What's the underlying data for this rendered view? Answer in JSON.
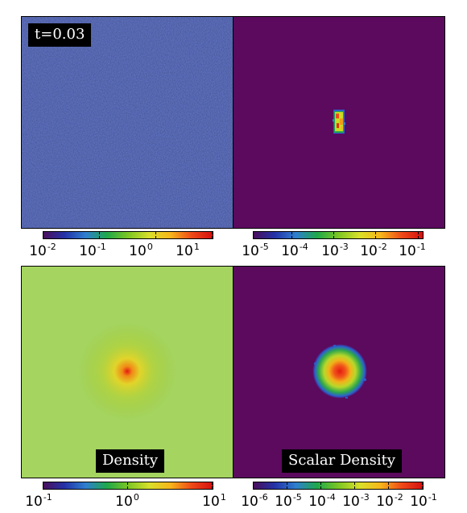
{
  "panels": {
    "top_left_label": "t=0.03",
    "bottom_left_label": "Density",
    "bottom_right_label": "Scalar Density"
  },
  "colorbars": [
    {
      "id": "top-left",
      "ticks": [
        {
          "base": "10",
          "exp": "-2"
        },
        {
          "base": "10",
          "exp": "-1"
        },
        {
          "base": "10",
          "exp": "0"
        },
        {
          "base": "10",
          "exp": "1"
        }
      ]
    },
    {
      "id": "top-right",
      "ticks": [
        {
          "base": "10",
          "exp": "-5"
        },
        {
          "base": "10",
          "exp": "-4"
        },
        {
          "base": "10",
          "exp": "-3"
        },
        {
          "base": "10",
          "exp": "-2"
        },
        {
          "base": "10",
          "exp": "-1"
        }
      ]
    },
    {
      "id": "bottom-left",
      "ticks": [
        {
          "base": "10",
          "exp": "-1"
        },
        {
          "base": "10",
          "exp": "0"
        },
        {
          "base": "10",
          "exp": "1"
        }
      ]
    },
    {
      "id": "bottom-right",
      "ticks": [
        {
          "base": "10",
          "exp": "-6"
        },
        {
          "base": "10",
          "exp": "-5"
        },
        {
          "base": "10",
          "exp": "-4"
        },
        {
          "base": "10",
          "exp": "-3"
        },
        {
          "base": "10",
          "exp": "-2"
        },
        {
          "base": "10",
          "exp": "-1"
        }
      ]
    }
  ],
  "colors": {
    "background_purple": "#5b0a5e",
    "colormap": [
      "#4a0f5c",
      "#2432a8",
      "#2f7fd0",
      "#1fa84a",
      "#7cc623",
      "#d8e02a",
      "#f7b61a",
      "#ef4a18",
      "#d41010"
    ]
  }
}
